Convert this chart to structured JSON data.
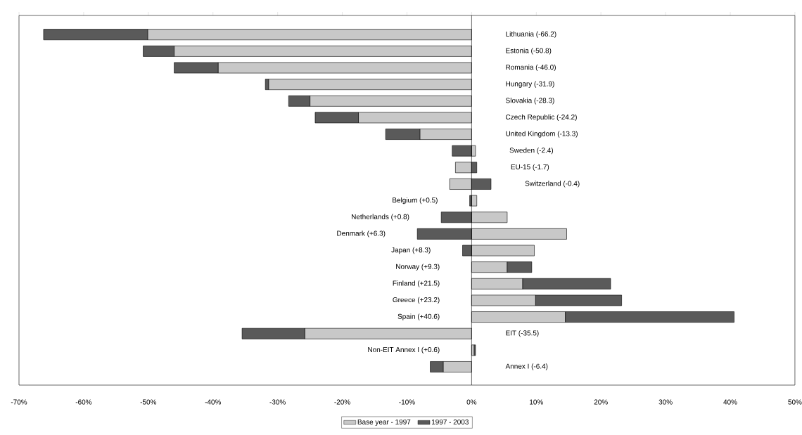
{
  "chart_data": {
    "type": "bar",
    "orientation": "horizontal",
    "stacked": true,
    "legend": "bottom",
    "categories": [
      "Lithuania (-66.2)",
      "Estonia (-50.8)",
      "Romania (-46.0)",
      "Hungary (-31.9)",
      "Slovakia (-28.3)",
      "Czech Republic (-24.2)",
      "United Kingdom (-13.3)",
      "Sweden (-2.4)",
      "EU-15 (-1.7)",
      "Switzerland (-0.4)",
      "Belgium (+0.5)",
      "Netherlands (+0.8)",
      "Denmark (+6.3)",
      "Japan (+8.3)",
      "Norway (+9.3)",
      "Finland (+21.5)",
      "Greece (+23.2)",
      "Spain (+40.6)",
      "EIT (-35.5)",
      "Non-EIT Annex I (+0.6)",
      "Annex I (-6.4)"
    ],
    "series": [
      {
        "name": "Base year - 1997",
        "color": "#c8c8c8",
        "values": [
          -50.1,
          -46.0,
          -39.2,
          -31.4,
          -25.0,
          -17.5,
          -8.0,
          0.6,
          -2.5,
          -3.4,
          0.8,
          5.5,
          14.7,
          9.7,
          5.5,
          7.9,
          9.9,
          14.5,
          -25.8,
          0.4,
          -4.4
        ]
      },
      {
        "name": "1997 - 2003",
        "color": "#5a5a5a",
        "values": [
          -16.1,
          -4.8,
          -6.8,
          -0.5,
          -3.3,
          -6.7,
          -5.3,
          -3.0,
          0.8,
          3.0,
          -0.3,
          -4.7,
          -8.4,
          -1.4,
          3.8,
          13.6,
          13.3,
          26.1,
          -9.7,
          0.2,
          -2.0
        ]
      }
    ],
    "xlim": [
      -70,
      50
    ],
    "xticks": [
      {
        "value": -70,
        "label": "-70%"
      },
      {
        "value": -60,
        "label": "-60%"
      },
      {
        "value": -50,
        "label": "-50%"
      },
      {
        "value": -40,
        "label": "-40%"
      },
      {
        "value": -30,
        "label": "-30%"
      },
      {
        "value": -20,
        "label": "-20%"
      },
      {
        "value": -10,
        "label": "-10%"
      },
      {
        "value": 0,
        "label": "0%"
      },
      {
        "value": 10,
        "label": "10%"
      },
      {
        "value": 20,
        "label": "20%"
      },
      {
        "value": 30,
        "label": "30%"
      },
      {
        "value": 40,
        "label": "40%"
      },
      {
        "value": 50,
        "label": "50%"
      }
    ]
  }
}
